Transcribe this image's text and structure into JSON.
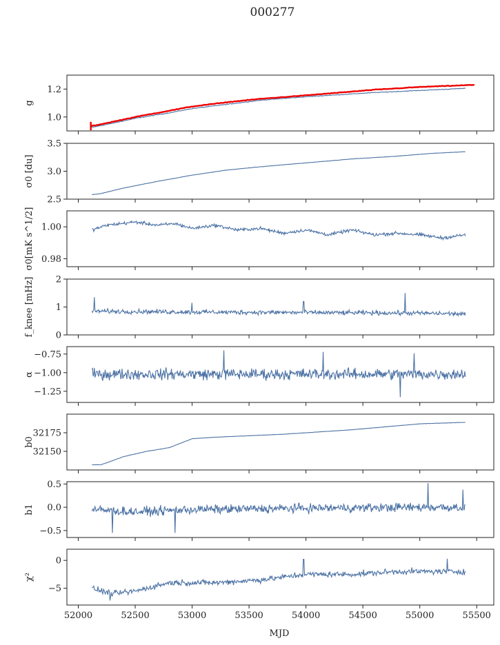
{
  "title": "000277",
  "xlabel": "MJD",
  "colors": {
    "series": "#4c72a4",
    "fit": "#ee0000",
    "frame": "#222222"
  },
  "chart_data": [
    {
      "type": "line",
      "ylabel": "g",
      "ylim": [
        0.9,
        1.3
      ],
      "yticks": [
        "1.0",
        "1.2"
      ],
      "ytick_values": [
        1.0,
        1.2
      ],
      "xlim": [
        51900,
        55650
      ],
      "series": [
        {
          "x": [
            52110,
            52150,
            52300,
            52500,
            52800,
            53000,
            53300,
            53600,
            54000,
            54300,
            54600,
            55000,
            55400
          ],
          "values": [
            0.925,
            0.93,
            0.955,
            0.99,
            1.03,
            1.06,
            1.09,
            1.12,
            1.145,
            1.16,
            1.175,
            1.19,
            1.205
          ],
          "noise": 0.004
        },
        {
          "x": [
            52110,
            52150,
            52300,
            52500,
            52800,
            53000,
            53300,
            53600,
            54000,
            54300,
            54600,
            55000,
            55480
          ],
          "values": [
            0.935,
            0.94,
            0.965,
            1.0,
            1.045,
            1.075,
            1.105,
            1.13,
            1.155,
            1.175,
            1.195,
            1.215,
            1.23
          ],
          "fit": true,
          "noise": 0.003
        }
      ]
    },
    {
      "type": "line",
      "ylabel": "σ0 [du]",
      "ylim": [
        2.5,
        3.5
      ],
      "yticks": [
        "2.5",
        "3.0",
        "3.5"
      ],
      "ytick_values": [
        2.5,
        3.0,
        3.5
      ],
      "xlim": [
        51900,
        55650
      ],
      "series": [
        {
          "x": [
            52120,
            52200,
            52400,
            52700,
            53000,
            53300,
            53600,
            54000,
            54400,
            54800,
            55100,
            55400
          ],
          "values": [
            2.58,
            2.6,
            2.7,
            2.82,
            2.93,
            3.02,
            3.08,
            3.15,
            3.22,
            3.27,
            3.32,
            3.35
          ],
          "noise": 0.004
        }
      ]
    },
    {
      "type": "line",
      "ylabel": "σ0[mK s^1/2]",
      "ylim": [
        0.975,
        1.01
      ],
      "yticks": [
        "0.98",
        "1.00"
      ],
      "ytick_values": [
        0.98,
        1.0
      ],
      "xlim": [
        51900,
        55650
      ],
      "series": [
        {
          "x": [
            52120,
            52250,
            52500,
            52700,
            52850,
            53000,
            53200,
            53400,
            53600,
            53800,
            54000,
            54200,
            54400,
            54600,
            54800,
            55000,
            55200,
            55400
          ],
          "values": [
            0.998,
            1.001,
            1.003,
            1.001,
            1.002,
            0.999,
            1.001,
            0.998,
            0.999,
            0.996,
            0.998,
            0.995,
            0.998,
            0.995,
            0.996,
            0.995,
            0.993,
            0.995
          ],
          "noise": 0.0015
        }
      ]
    },
    {
      "type": "line",
      "ylabel": "f_knee [mHz]",
      "ylim": [
        0,
        2
      ],
      "yticks": [
        "0",
        "1",
        "2"
      ],
      "ytick_values": [
        0,
        1,
        2
      ],
      "xlim": [
        51900,
        55650
      ],
      "series": [
        {
          "x": [
            52120,
            53000,
            54000,
            55000,
            55400
          ],
          "values": [
            0.85,
            0.82,
            0.8,
            0.78,
            0.75
          ],
          "noise": 0.12,
          "spikes": [
            [
              52140,
              1.35
            ],
            [
              53000,
              1.15
            ],
            [
              53980,
              1.2
            ],
            [
              54870,
              1.5
            ]
          ]
        }
      ]
    },
    {
      "type": "line",
      "ylabel": "α",
      "ylim": [
        -1.4,
        -0.65
      ],
      "yticks": [
        "−1.25",
        "−1.00",
        "−0.75"
      ],
      "ytick_values": [
        -1.25,
        -1.0,
        -0.75
      ],
      "xlim": [
        51900,
        55650
      ],
      "series": [
        {
          "x": [
            52120,
            53000,
            54000,
            55000,
            55400
          ],
          "values": [
            -1.02,
            -1.02,
            -1.02,
            -1.02,
            -1.02
          ],
          "noise": 0.11,
          "spikes": [
            [
              53280,
              -0.7
            ],
            [
              54150,
              -0.72
            ],
            [
              54950,
              -0.74
            ],
            [
              54830,
              -1.33
            ]
          ]
        }
      ]
    },
    {
      "type": "line",
      "ylabel": "b0",
      "ylim": [
        32125,
        32200
      ],
      "yticks": [
        "32150",
        "32175"
      ],
      "ytick_values": [
        32150,
        32175
      ],
      "xlim": [
        51900,
        55650
      ],
      "series": [
        {
          "x": [
            52120,
            52200,
            52400,
            52600,
            52800,
            53000,
            53200,
            53500,
            53800,
            54100,
            54400,
            54700,
            55000,
            55400
          ],
          "values": [
            32132,
            32132,
            32143,
            32150,
            32155,
            32167,
            32169,
            32171,
            32173,
            32176,
            32179,
            32183,
            32187,
            32189
          ],
          "noise": 0.3
        }
      ]
    },
    {
      "type": "line",
      "ylabel": "b1",
      "ylim": [
        -0.65,
        0.55
      ],
      "yticks": [
        "−0.5",
        "0.0",
        "0.5"
      ],
      "ytick_values": [
        -0.5,
        0.0,
        0.5
      ],
      "xlim": [
        51900,
        55650
      ],
      "series": [
        {
          "x": [
            52120,
            52500,
            53000,
            54000,
            55000,
            55400
          ],
          "values": [
            -0.05,
            -0.1,
            -0.05,
            -0.02,
            0.0,
            0.0
          ],
          "noise": 0.14,
          "spikes": [
            [
              52300,
              -0.55
            ],
            [
              52850,
              -0.55
            ],
            [
              55070,
              0.52
            ],
            [
              55380,
              0.38
            ]
          ]
        }
      ]
    },
    {
      "type": "line",
      "ylabel": "χ²",
      "ylim": [
        -8,
        2
      ],
      "yticks": [
        "−5",
        "0"
      ],
      "ytick_values": [
        -5,
        0
      ],
      "xticks": [
        "52000",
        "52500",
        "53000",
        "53500",
        "54000",
        "54500",
        "55000",
        "55500"
      ],
      "xtick_values": [
        52000,
        52500,
        53000,
        53500,
        54000,
        54500,
        55000,
        55500
      ],
      "xlim": [
        51900,
        55650
      ],
      "series": [
        {
          "x": [
            52120,
            52300,
            52500,
            52800,
            53200,
            53600,
            54000,
            54400,
            54800,
            55200,
            55400
          ],
          "values": [
            -5,
            -6,
            -5.5,
            -4,
            -4,
            -3.5,
            -2.5,
            -2.5,
            -2,
            -2,
            -2
          ],
          "noise": 0.75,
          "spikes": [
            [
              53980,
              0.2
            ],
            [
              55240,
              0.3
            ],
            [
              52280,
              -7.2
            ]
          ]
        }
      ]
    }
  ]
}
